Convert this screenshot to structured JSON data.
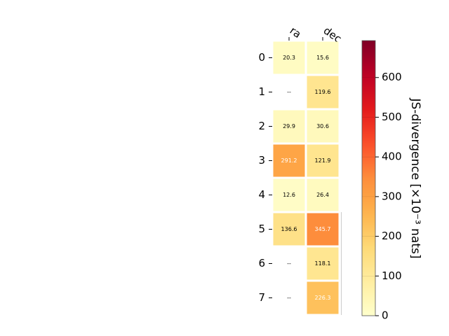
{
  "chart_data": {
    "type": "heatmap",
    "columns": [
      "ra",
      "dec"
    ],
    "rows": [
      "0",
      "1",
      "2",
      "3",
      "4",
      "5",
      "6",
      "7"
    ],
    "values": [
      [
        20.3,
        15.6
      ],
      [
        null,
        119.6
      ],
      [
        29.9,
        30.6
      ],
      [
        291.2,
        121.9
      ],
      [
        12.6,
        26.4
      ],
      [
        136.6,
        345.7
      ],
      [
        null,
        118.1
      ],
      [
        null,
        226.3
      ]
    ],
    "cell_labels": [
      [
        "20.3",
        "15.6"
      ],
      [
        "--",
        "119.6"
      ],
      [
        "29.9",
        "30.6"
      ],
      [
        "291.2",
        "121.9"
      ],
      [
        "12.6",
        "26.4"
      ],
      [
        "136.6",
        "345.7"
      ],
      [
        "--",
        "118.1"
      ],
      [
        "--",
        "226.3"
      ]
    ],
    "colorbar": {
      "label": "JS-divergence [×10⁻³ nats]",
      "range": [
        0,
        693
      ],
      "ticks": [
        0,
        100,
        200,
        300,
        400,
        500,
        600
      ],
      "tick_labels": [
        "0",
        "100",
        "200",
        "300",
        "400",
        "500",
        "600"
      ],
      "colormap": "YlOrRd"
    },
    "grid": false
  }
}
